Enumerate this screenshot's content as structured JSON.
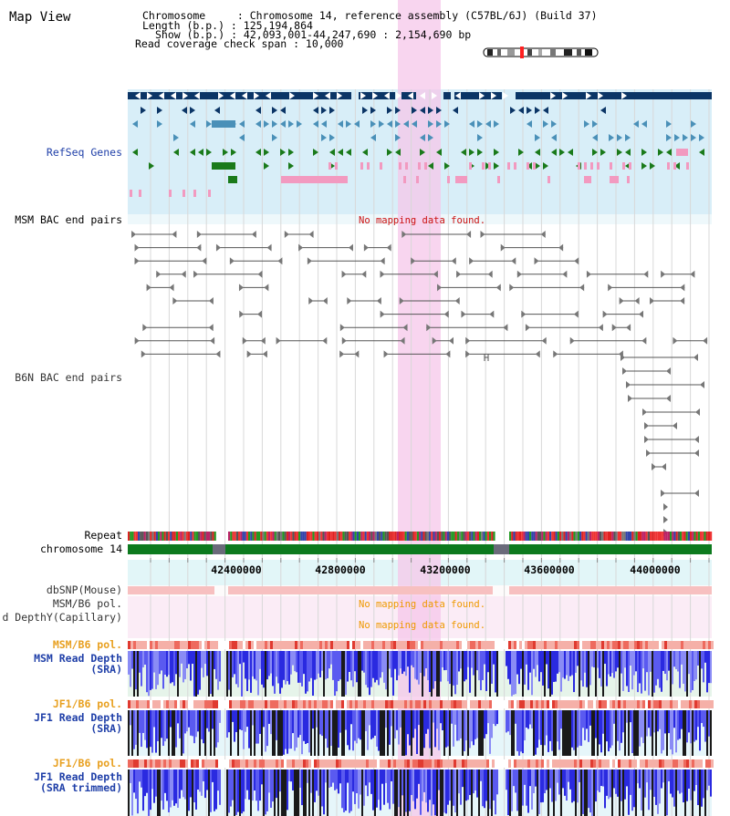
{
  "view_title": "Map View",
  "info": {
    "lines": [
      "Chromosome     : Chromosome 14, reference assembly (C57BL/6J) (Build 37)",
      "Length (b.p.) : 125,194,864",
      "Show (b.p.) : 42,093,001-44,247,690 : 2,154,690 bp",
      "Read coverage check span : 10,000"
    ]
  },
  "tracks": {
    "refseq": "RefSeq Genes",
    "msm_bac": "MSM BAC end pairs",
    "b6n_bac": "B6N BAC end pairs",
    "repeat": "Repeat",
    "chromosome": "chromosome 14",
    "dbsnp": "dbSNP(Mouse)",
    "msm_b6_pol_cap": "MSM/B6 pol.",
    "read_depth_cap": "d DepthY(Capillary)",
    "msm_b6_pol": "MSM/B6 pol.",
    "msm_read_depth_1": "MSM Read Depth",
    "msm_read_depth_2": "(SRA)",
    "jf1_b6_pol_1": "JF1/B6 pol.",
    "jf1_read_depth_1": "JF1 Read Depth",
    "jf1_read_depth_2": "(SRA)",
    "jf1_b6_pol_2": "JF1/B6 pol.",
    "jf1_trim_1": "JF1 Read Depth",
    "jf1_trim_2": "(SRA trimmed)"
  },
  "messages": {
    "msm_bac_none": "No mapping data found.",
    "pol_none": "No mapping data found.",
    "depth_none": "No mapping data found."
  },
  "ruler_ticks": [
    "42400000",
    "42800000",
    "43200000",
    "43600000",
    "44000000"
  ],
  "colors": {
    "refseq_bg": "#d8eef8",
    "gene_navy": "#0b3566",
    "gene_teal": "#4a90b8",
    "gene_green": "#1a7a1a",
    "gene_pink": "#f29ac0",
    "highlight": "#f6c7ea",
    "chrom_green": "#0d7a1e",
    "label_blue": "#1f3fa8",
    "label_orange": "#e8a020",
    "msg_red": "#cc1111",
    "msg_orange": "#ee9900"
  }
}
